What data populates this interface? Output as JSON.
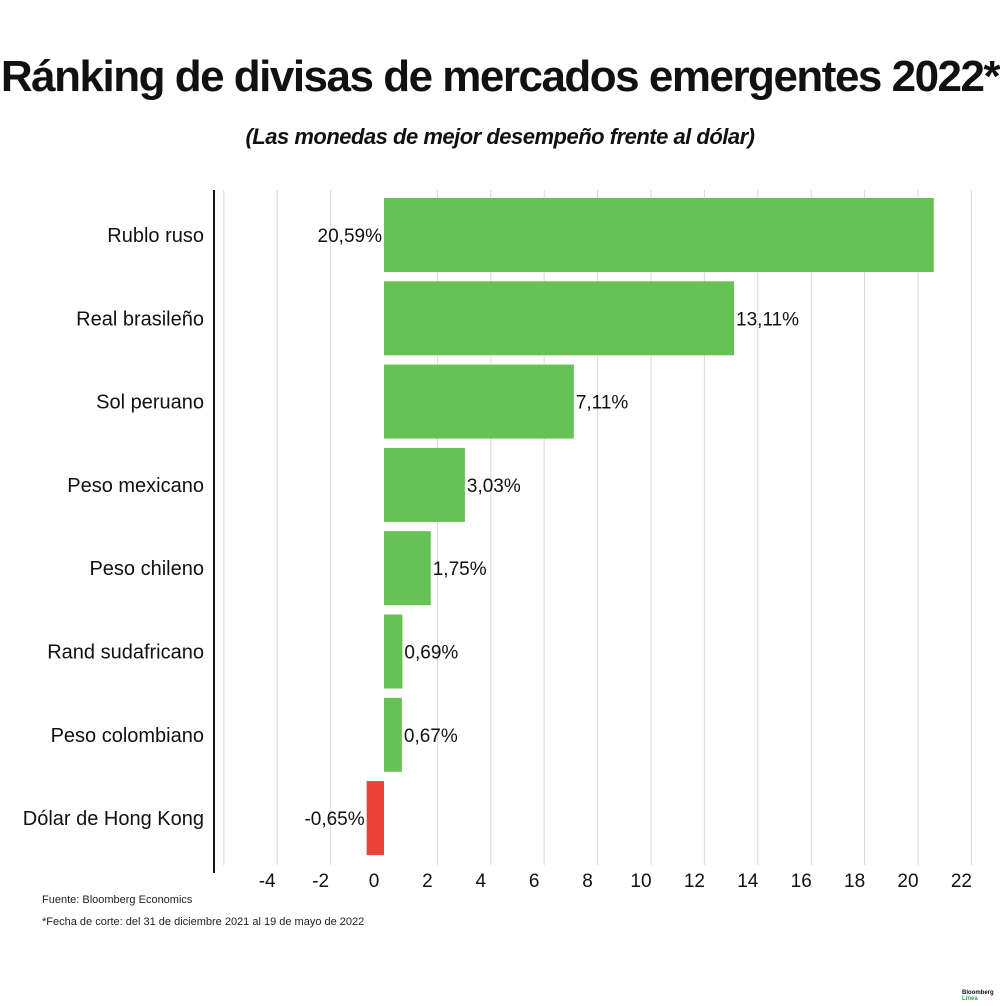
{
  "chart_data": {
    "type": "bar",
    "orientation": "horizontal",
    "title": "Ránking de divisas de mercados emergentes 2022*",
    "subtitle": "(Las monedas de mejor desempeño frente al dólar)",
    "categories": [
      "Rublo ruso",
      "Real brasileño",
      "Sol peruano",
      "Peso mexicano",
      "Peso chileno",
      "Rand sudafricano",
      "Peso colombiano",
      "Dólar de Hong Kong"
    ],
    "values": [
      20.59,
      13.11,
      7.11,
      3.03,
      1.75,
      0.69,
      0.67,
      -0.65
    ],
    "value_labels": [
      "20,59%",
      "13,11%",
      "7,11%",
      "3,03%",
      "1,75%",
      "0,69%",
      "0,67%",
      "-0,65%"
    ],
    "xlim": [
      -6,
      22
    ],
    "xticks": [
      -4,
      -2,
      0,
      2,
      4,
      6,
      8,
      10,
      12,
      14,
      16,
      18,
      20,
      22
    ],
    "grid": true,
    "colors": {
      "positive": "#66c255",
      "negative": "#ea4236",
      "grid": "#d9d9d9",
      "axis": "#111111"
    }
  },
  "footer": {
    "source": "Fuente: Bloomberg Economics",
    "note": "*Fecha de corte: del 31 de diciembre 2021 al 19 de mayo de 2022"
  },
  "logo": {
    "line1": "Bloomberg",
    "line2": "Línea"
  }
}
